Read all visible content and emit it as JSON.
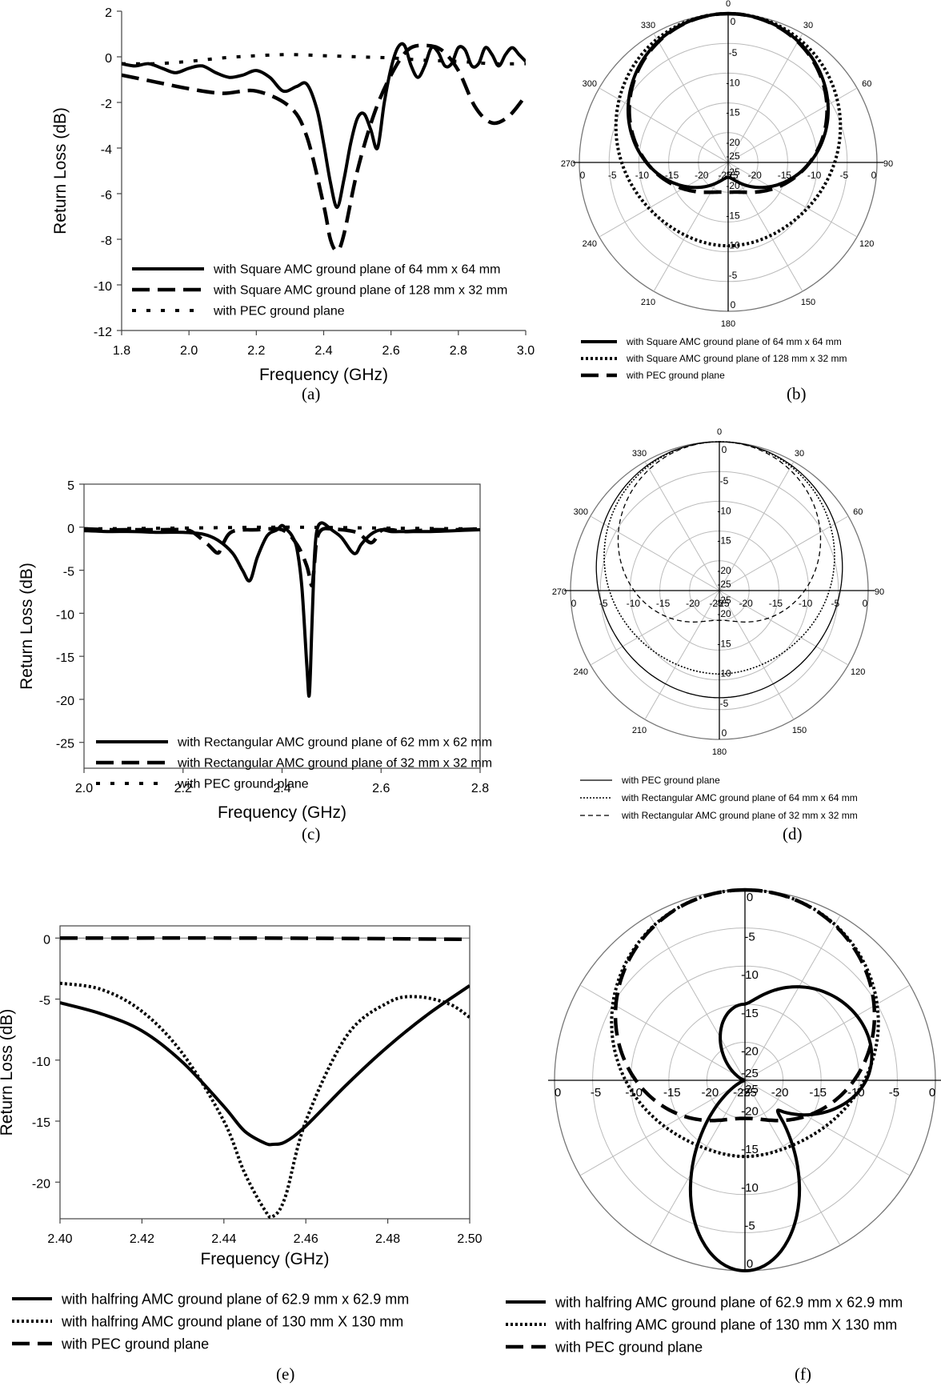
{
  "chart_data": [
    {
      "id": "a",
      "type": "line",
      "caption": "(a)",
      "xlabel": "Frequency (GHz)",
      "ylabel": "Return Loss (dB)",
      "xlim": [
        1.8,
        3.0
      ],
      "ylim": [
        -12,
        2
      ],
      "xticks": [
        1.8,
        2.0,
        2.2,
        2.4,
        2.6,
        2.8,
        3.0
      ],
      "xtick_labels": [
        "1.8",
        "2.0",
        "2.2",
        "2.4",
        "2.6",
        "2.8",
        "3.0"
      ],
      "yticks": [
        2,
        0,
        -2,
        -4,
        -6,
        -8,
        -10,
        -12
      ],
      "legend_position": "bottom",
      "series": [
        {
          "name": "with Square AMC ground plane of 64 mm x 64 mm",
          "style": "solid",
          "x": [
            1.8,
            1.84,
            1.88,
            1.92,
            1.96,
            2.0,
            2.04,
            2.08,
            2.12,
            2.16,
            2.2,
            2.24,
            2.28,
            2.32,
            2.35,
            2.38,
            2.4,
            2.42,
            2.44,
            2.46,
            2.48,
            2.5,
            2.52,
            2.54,
            2.56,
            2.58,
            2.6,
            2.62,
            2.64,
            2.66,
            2.68,
            2.7,
            2.72,
            2.74,
            2.76,
            2.78,
            2.8,
            2.82,
            2.84,
            2.86,
            2.88,
            2.9,
            2.92,
            2.94,
            2.96,
            2.98,
            3.0
          ],
          "y": [
            -0.3,
            -0.4,
            -0.3,
            -0.5,
            -0.7,
            -0.5,
            -0.4,
            -0.7,
            -0.9,
            -0.8,
            -0.6,
            -0.9,
            -1.5,
            -1.3,
            -1.2,
            -2.3,
            -3.8,
            -5.5,
            -6.6,
            -5.4,
            -3.8,
            -2.7,
            -2.5,
            -3.2,
            -4.0,
            -2.0,
            -0.5,
            0.4,
            0.5,
            -0.4,
            -0.9,
            -0.4,
            0.4,
            0.2,
            -0.4,
            -0.3,
            0.4,
            0.3,
            -0.4,
            -0.3,
            0.4,
            0.1,
            -0.4,
            0.1,
            0.4,
            0.1,
            -0.2
          ]
        },
        {
          "name": "with Square AMC ground plane of 128 mm x 32 mm",
          "style": "dashed",
          "x": [
            1.8,
            1.9,
            2.0,
            2.1,
            2.2,
            2.3,
            2.35,
            2.4,
            2.42,
            2.44,
            2.46,
            2.5,
            2.55,
            2.6,
            2.65,
            2.7,
            2.75,
            2.8,
            2.85,
            2.9,
            2.95,
            3.0
          ],
          "y": [
            -0.8,
            -1.1,
            -1.4,
            -1.6,
            -1.5,
            -2.2,
            -3.5,
            -6.5,
            -8.0,
            -8.5,
            -7.8,
            -5.0,
            -2.5,
            -0.8,
            0.3,
            0.5,
            0.3,
            -0.6,
            -2.2,
            -2.9,
            -2.6,
            -1.7
          ]
        },
        {
          "name": "with PEC ground plane",
          "style": "dashed-light",
          "x": [
            1.8,
            1.9,
            2.0,
            2.1,
            2.2,
            2.3,
            2.4,
            2.5,
            2.6,
            2.7,
            2.8,
            2.9,
            3.0
          ],
          "y": [
            -0.3,
            -0.3,
            -0.2,
            -0.05,
            0.05,
            0.1,
            0.05,
            0.0,
            -0.05,
            -0.15,
            -0.2,
            -0.3,
            -0.3
          ]
        }
      ]
    },
    {
      "id": "b",
      "type": "polar",
      "caption": "(b)",
      "angle_labels": [
        "0",
        "30",
        "60",
        "90",
        "120",
        "150",
        "180",
        "210",
        "240",
        "270",
        "300",
        "330"
      ],
      "radial_labels": [
        "0",
        "-5",
        "-10",
        "-15",
        "-20",
        "-25"
      ],
      "radial_range": [
        -25,
        0
      ],
      "legend_position": "bottom",
      "series": [
        {
          "name": "with Square AMC ground plane of 64 mm x 64 mm",
          "style": "solid",
          "shape": "cardioid",
          "front": 0,
          "back": -22.5,
          "power": 1.0
        },
        {
          "name": "with Square AMC ground plane of 128 mm x 32 mm",
          "style": "dotted",
          "shape": "cardioid",
          "front": 0,
          "back": -11,
          "power": 1.5
        },
        {
          "name": "with PEC ground plane",
          "style": "dashed",
          "shape": "cardioid",
          "front": 0,
          "back": -20,
          "power": 1.2
        }
      ]
    },
    {
      "id": "c",
      "type": "line",
      "caption": "(c)",
      "xlabel": "Frequency (GHz)",
      "ylabel": "Return Loss (dB)",
      "xlim": [
        2.0,
        2.8
      ],
      "ylim": [
        -28,
        5
      ],
      "xticks": [
        2.0,
        2.2,
        2.4,
        2.6,
        2.8
      ],
      "xtick_labels": [
        "2.0",
        "2.2",
        "2.4",
        "2.6",
        "2.8"
      ],
      "yticks": [
        5,
        0,
        -5,
        -10,
        -15,
        -20,
        -25
      ],
      "legend_position": "bottom",
      "series": [
        {
          "name": "with Rectangular AMC ground plane of 62 mm x 62 mm",
          "style": "solid",
          "x": [
            2.0,
            2.05,
            2.1,
            2.15,
            2.2,
            2.24,
            2.27,
            2.3,
            2.32,
            2.335,
            2.35,
            2.37,
            2.39,
            2.4,
            2.41,
            2.42,
            2.43,
            2.44,
            2.45,
            2.455,
            2.46,
            2.465,
            2.47,
            2.48,
            2.5,
            2.52,
            2.54,
            2.55,
            2.56,
            2.58,
            2.6,
            2.62,
            2.65,
            2.7,
            2.75,
            2.8
          ],
          "y": [
            -0.4,
            -0.5,
            -0.5,
            -0.6,
            -0.6,
            -0.8,
            -1.5,
            -3.0,
            -5.0,
            -6.2,
            -3.5,
            -1.0,
            -0.3,
            0.2,
            -0.3,
            -1.0,
            -2.5,
            -7.0,
            -16.0,
            -19.5,
            -12.0,
            -4.0,
            -0.5,
            0.5,
            -0.3,
            -1.2,
            -2.8,
            -3.0,
            -2.0,
            -0.8,
            -0.3,
            -0.5,
            -0.5,
            -0.5,
            -0.4,
            -0.3
          ]
        },
        {
          "name": "with Rectangular AMC ground plane of 32 mm x 32 mm",
          "style": "dashed",
          "x": [
            2.0,
            2.05,
            2.1,
            2.15,
            2.2,
            2.22,
            2.25,
            2.27,
            2.28,
            2.3,
            2.35,
            2.4,
            2.43,
            2.45,
            2.46,
            2.465,
            2.47,
            2.48,
            2.5,
            2.55,
            2.58,
            2.6,
            2.62,
            2.65,
            2.7,
            2.75,
            2.8
          ],
          "y": [
            -0.2,
            -0.3,
            -0.3,
            -0.3,
            -0.3,
            -0.6,
            -2.0,
            -3.0,
            -2.0,
            -0.5,
            -0.3,
            -0.3,
            -2.0,
            -4.5,
            -6.8,
            -4.5,
            -1.5,
            -0.3,
            -0.2,
            -0.6,
            -1.8,
            -0.4,
            -0.3,
            -0.5,
            -0.3,
            -0.3,
            -0.2
          ]
        },
        {
          "name": "with PEC ground plane",
          "style": "dashed-light",
          "x": [
            2.0,
            2.2,
            2.4,
            2.6,
            2.8
          ],
          "y": [
            -0.2,
            -0.1,
            0.0,
            -0.1,
            -0.2
          ]
        }
      ]
    },
    {
      "id": "d",
      "type": "polar",
      "caption": "(d)",
      "angle_labels": [
        "0",
        "30",
        "60",
        "90",
        "120",
        "150",
        "180",
        "210",
        "240",
        "270",
        "300",
        "330"
      ],
      "radial_labels": [
        "0",
        "-5",
        "-10",
        "-15",
        "-20",
        "-25"
      ],
      "radial_range": [
        -25,
        0
      ],
      "legend_position": "bottom",
      "series": [
        {
          "name": "with PEC ground plane",
          "style": "thin-solid",
          "shape": "cardioid",
          "front": 0,
          "back": -7,
          "power": 1.6
        },
        {
          "name": "with Rectangular AMC ground plane of 64 mm x 64 mm",
          "style": "thin-dotted",
          "shape": "cardioid",
          "front": 0,
          "back": -11,
          "power": 1.3
        },
        {
          "name": "with Rectangular AMC ground plane of 32 mm x 32 mm",
          "style": "thin-dashed",
          "shape": "cardioid",
          "front": 0,
          "back": -20,
          "power": 1.1
        }
      ]
    },
    {
      "id": "e",
      "type": "line",
      "caption": "(e)",
      "xlabel": "Frequency (GHz)",
      "ylabel": "Return Loss (dB)",
      "xlim": [
        2.4,
        2.5
      ],
      "ylim": [
        -23,
        1
      ],
      "xticks": [
        2.4,
        2.42,
        2.44,
        2.46,
        2.48,
        2.5
      ],
      "xtick_labels": [
        "2.40",
        "2.42",
        "2.44",
        "2.46",
        "2.48",
        "2.50"
      ],
      "yticks": [
        0,
        -5,
        -10,
        -15,
        -20
      ],
      "legend_position": "bottom",
      "series": [
        {
          "name": "with halfring AMC ground plane of 62.9 mm x 62.9 mm",
          "style": "solid",
          "x": [
            2.4,
            2.41,
            2.42,
            2.43,
            2.44,
            2.445,
            2.45,
            2.452,
            2.455,
            2.46,
            2.47,
            2.48,
            2.49,
            2.5
          ],
          "y": [
            -5.3,
            -6.2,
            -7.6,
            -10.2,
            -13.8,
            -15.8,
            -16.8,
            -16.9,
            -16.7,
            -15.4,
            -12.0,
            -8.9,
            -6.2,
            -3.9
          ]
        },
        {
          "name": "with halfring AMC ground plane of 130 mm X 130 mm",
          "style": "dotted",
          "x": [
            2.4,
            2.41,
            2.42,
            2.43,
            2.44,
            2.445,
            2.45,
            2.452,
            2.455,
            2.46,
            2.47,
            2.48,
            2.487,
            2.495,
            2.5
          ],
          "y": [
            -3.7,
            -4.2,
            -6.0,
            -9.5,
            -15.0,
            -19.2,
            -22.3,
            -22.8,
            -21.2,
            -15.0,
            -8.0,
            -5.3,
            -4.8,
            -5.4,
            -6.5
          ]
        },
        {
          "name": "with PEC ground plane",
          "style": "dashed",
          "x": [
            2.4,
            2.45,
            2.5
          ],
          "y": [
            0.0,
            0.0,
            -0.1
          ]
        }
      ]
    },
    {
      "id": "f",
      "type": "polar",
      "caption": "(f)",
      "angle_labels": [],
      "radial_labels": [
        "0",
        "-5",
        "-10",
        "-15",
        "-20",
        "-25"
      ],
      "radial_range": [
        -25,
        0
      ],
      "legend_position": "bottom",
      "series": [
        {
          "name": "with halfring AMC ground plane of 62.9 mm x 62.9 mm",
          "style": "solid",
          "shape": "three-lobe",
          "front": -7,
          "side": -8,
          "back": 0
        },
        {
          "name": "with halfring AMC ground plane of 130 mm X 130 mm",
          "style": "dotted",
          "shape": "cardioid",
          "front": 0,
          "back": -15,
          "power": 1.4
        },
        {
          "name": "with PEC ground plane",
          "style": "dashed",
          "shape": "cardioid",
          "front": 0,
          "back": -20,
          "power": 1.1
        }
      ]
    }
  ]
}
